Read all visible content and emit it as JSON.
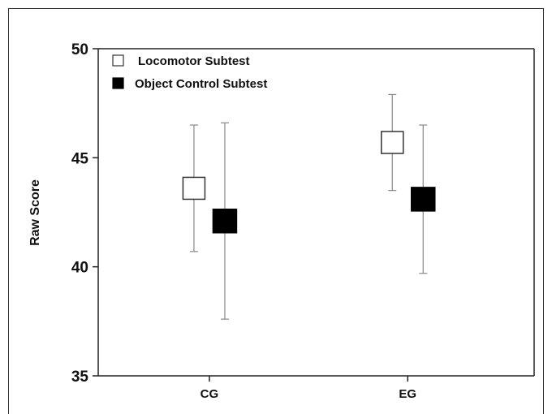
{
  "chart_data": {
    "type": "scatter",
    "categories": [
      "CG",
      "EG"
    ],
    "ylabel": "Raw Score",
    "xlabel": "",
    "ylim": [
      35,
      50
    ],
    "yticks": [
      "35",
      "40",
      "45",
      "50"
    ],
    "legend_position": "top-left",
    "series": [
      {
        "name": "Locomotor Subtest",
        "marker": "open-square",
        "color": "#ffffff",
        "points": [
          {
            "category": "CG",
            "mean": 43.6,
            "upper": 46.5,
            "lower": 40.7
          },
          {
            "category": "EG",
            "mean": 45.7,
            "upper": 47.9,
            "lower": 43.5
          }
        ]
      },
      {
        "name": "Object Control Subtest",
        "marker": "filled-square",
        "color": "#000000",
        "points": [
          {
            "category": "CG",
            "mean": 42.1,
            "upper": 46.6,
            "lower": 37.6
          },
          {
            "category": "EG",
            "mean": 43.1,
            "upper": 46.5,
            "lower": 39.7
          }
        ]
      }
    ]
  }
}
